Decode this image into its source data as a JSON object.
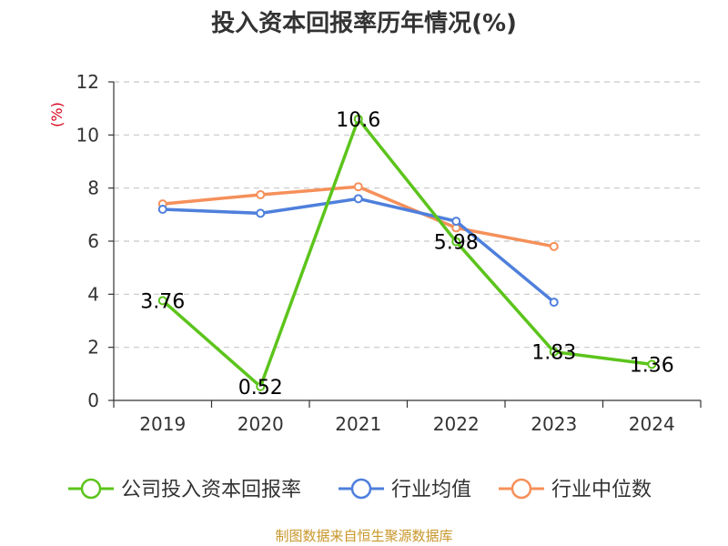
{
  "chart_data": {
    "type": "line",
    "title": "投入资本回报率历年情况(%)",
    "ylabel": "(%)",
    "xlabel": "",
    "categories": [
      "2019",
      "2020",
      "2021",
      "2022",
      "2023",
      "2024"
    ],
    "ylim": [
      0,
      12
    ],
    "yticks": [
      0,
      2,
      4,
      6,
      8,
      10,
      12
    ],
    "grid": true,
    "legend_position": "bottom",
    "series": [
      {
        "name": "公司投入资本回报率",
        "color": "#5cc41c",
        "values": [
          3.76,
          0.52,
          10.6,
          5.98,
          1.83,
          1.36
        ],
        "labels": [
          "3.76",
          "0.52",
          "10.6",
          "5.98",
          "1.83",
          "1.36"
        ]
      },
      {
        "name": "行业均值",
        "color": "#4e7fdc",
        "values": [
          7.2,
          7.05,
          7.6,
          6.75,
          3.7,
          null
        ]
      },
      {
        "name": "行业中位数",
        "color": "#f5905a",
        "values": [
          7.4,
          7.75,
          8.05,
          6.5,
          5.8,
          null
        ]
      }
    ],
    "source": "制图数据来自恒生聚源数据库"
  }
}
